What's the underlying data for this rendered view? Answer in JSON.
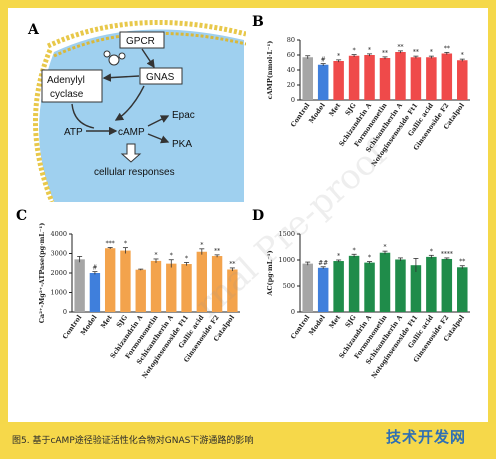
{
  "caption": "图5. 基于cAMP途径验证活性化合物对GNAS下游通路的影响",
  "logo_text": "技术开发网",
  "watermark_text": "rnal Pre-proof",
  "diagram": {
    "letter": "A",
    "labels": {
      "gpcr": "GPCR",
      "gnas": "GNAS",
      "adenylyl": "Adenylyl",
      "cyclase": "cyclase",
      "atp": "ATP",
      "camp": "cAMP",
      "epac": "Epac",
      "pka": "PKA",
      "cellular": "cellular responses"
    }
  },
  "colors": {
    "control": "#a6a6a6",
    "model": "#3f7fdc",
    "B": "#ef4a4a",
    "C": "#f3a34c",
    "D": "#1f8c4a"
  },
  "chart_data": [
    {
      "panel": "B",
      "type": "bar",
      "ylabel": "cAMP(nmol·L⁻¹)",
      "ylim": [
        0,
        80
      ],
      "yticks": [
        0,
        20,
        40,
        60,
        80
      ],
      "categories": [
        "Control",
        "Model",
        "Met",
        "SJG",
        "Schizandrin A",
        "Formononetin",
        "Schisantherin A",
        "Notoginsenoside Ft1",
        "Gallic acid",
        "Ginsenoside F2",
        "Catalpol"
      ],
      "values": [
        57,
        47,
        52,
        59,
        60,
        56,
        64,
        57,
        57,
        62,
        53
      ],
      "errors": [
        2,
        1.5,
        1.5,
        1.5,
        1.5,
        1.5,
        1.5,
        1.5,
        1.5,
        1.5,
        1.5
      ],
      "significance": [
        "",
        "#",
        "*",
        "*",
        "*",
        "**",
        "**",
        "**",
        "*",
        "**",
        "*"
      ]
    },
    {
      "panel": "C",
      "type": "bar",
      "ylabel": "Ca²⁺-Mg²⁺-ATPase(pg·mL⁻¹)",
      "ylim": [
        0,
        4000
      ],
      "yticks": [
        0,
        1000,
        2000,
        3000,
        4000
      ],
      "categories": [
        "Control",
        "Model",
        "Met",
        "SJG",
        "Schizandrin A",
        "Formononetin",
        "Schisantherin A",
        "Notoginsenoside Ft1",
        "Gallic acid",
        "Ginsenoside F2",
        "Catalpol"
      ],
      "values": [
        2700,
        2000,
        3270,
        3150,
        2170,
        2620,
        2480,
        2460,
        3090,
        2870,
        2180
      ],
      "errors": [
        150,
        70,
        40,
        150,
        30,
        100,
        200,
        80,
        150,
        60,
        80
      ],
      "significance": [
        "",
        "#",
        "***",
        "*",
        "",
        "*",
        "*",
        "*",
        "*",
        "**",
        "**"
      ]
    },
    {
      "panel": "D",
      "type": "bar",
      "ylabel": "AC(pg·mL⁻¹)",
      "ylim": [
        0,
        1500
      ],
      "yticks": [
        0,
        500,
        1000,
        1500
      ],
      "categories": [
        "Control",
        "Model",
        "Met",
        "SJG",
        "Schizandrin A",
        "Formononetin",
        "Schisantherin A",
        "Notoginsenoside Ft1",
        "Gallic acid",
        "Ginsenoside F2",
        "Catalpol"
      ],
      "values": [
        930,
        850,
        980,
        1080,
        950,
        1140,
        1010,
        900,
        1060,
        1020,
        860
      ],
      "errors": [
        30,
        20,
        20,
        30,
        20,
        30,
        30,
        130,
        30,
        20,
        30
      ],
      "significance": [
        "",
        "##",
        "*",
        "*",
        "*",
        "*",
        "",
        "",
        "*",
        "****",
        "**"
      ]
    }
  ]
}
